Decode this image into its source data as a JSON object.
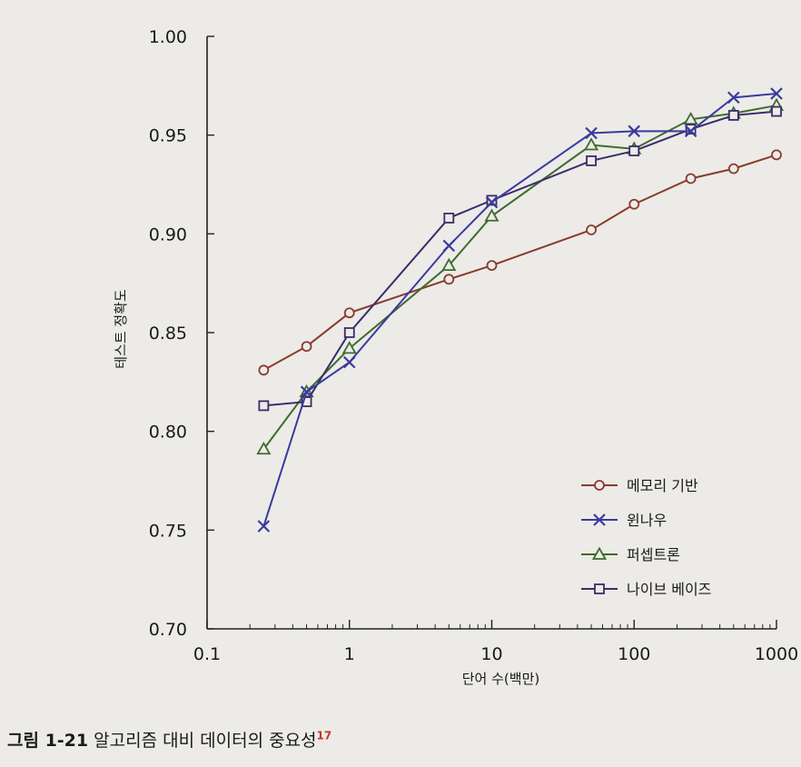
{
  "chart_data": {
    "type": "line",
    "title": "",
    "xlabel": "단어 수(백만)",
    "ylabel": "테스트 정확도",
    "xscale": "log",
    "xlim": [
      0.1,
      1000
    ],
    "ylim": [
      0.7,
      1.0
    ],
    "x_ticks": [
      0.1,
      1,
      10,
      100,
      1000
    ],
    "x_tick_labels": [
      "0.1",
      "1",
      "10",
      "100",
      "1000"
    ],
    "y_ticks": [
      0.7,
      0.75,
      0.8,
      0.85,
      0.9,
      0.95,
      1.0
    ],
    "y_tick_labels": [
      "0.70",
      "0.75",
      "0.80",
      "0.85",
      "0.90",
      "0.95",
      "1.00"
    ],
    "grid": false,
    "legend_position": "bottom-right",
    "series": [
      {
        "name": "메모리 기반",
        "marker": "circle",
        "color": "#8b3a2e",
        "x": [
          0.25,
          0.5,
          1,
          5,
          10,
          50,
          100,
          250,
          500,
          1000
        ],
        "y": [
          0.831,
          0.843,
          0.86,
          0.877,
          0.884,
          0.902,
          0.915,
          0.928,
          0.933,
          0.94
        ]
      },
      {
        "name": "윈나우",
        "marker": "x",
        "color": "#3a3a9e",
        "x": [
          0.25,
          0.5,
          1,
          5,
          10,
          50,
          100,
          250,
          500,
          1000
        ],
        "y": [
          0.752,
          0.82,
          0.835,
          0.894,
          0.916,
          0.951,
          0.952,
          0.952,
          0.969,
          0.971
        ]
      },
      {
        "name": "퍼셉트론",
        "marker": "triangle",
        "color": "#3e6b2e",
        "x": [
          0.25,
          0.5,
          1,
          5,
          10,
          50,
          100,
          250,
          500,
          1000
        ],
        "y": [
          0.791,
          0.82,
          0.842,
          0.884,
          0.909,
          0.945,
          0.943,
          0.958,
          0.961,
          0.965
        ]
      },
      {
        "name": "나이브 베이즈",
        "marker": "square",
        "color": "#3a2c6b",
        "x": [
          0.25,
          0.5,
          1,
          5,
          10,
          50,
          100,
          250,
          500,
          1000
        ],
        "y": [
          0.813,
          0.815,
          0.85,
          0.908,
          0.917,
          0.937,
          0.942,
          0.953,
          0.96,
          0.962
        ]
      }
    ]
  },
  "caption": {
    "figure_number": "그림 1-21",
    "text": "알고리즘 대비 데이터의 중요성",
    "footnote": "17"
  }
}
